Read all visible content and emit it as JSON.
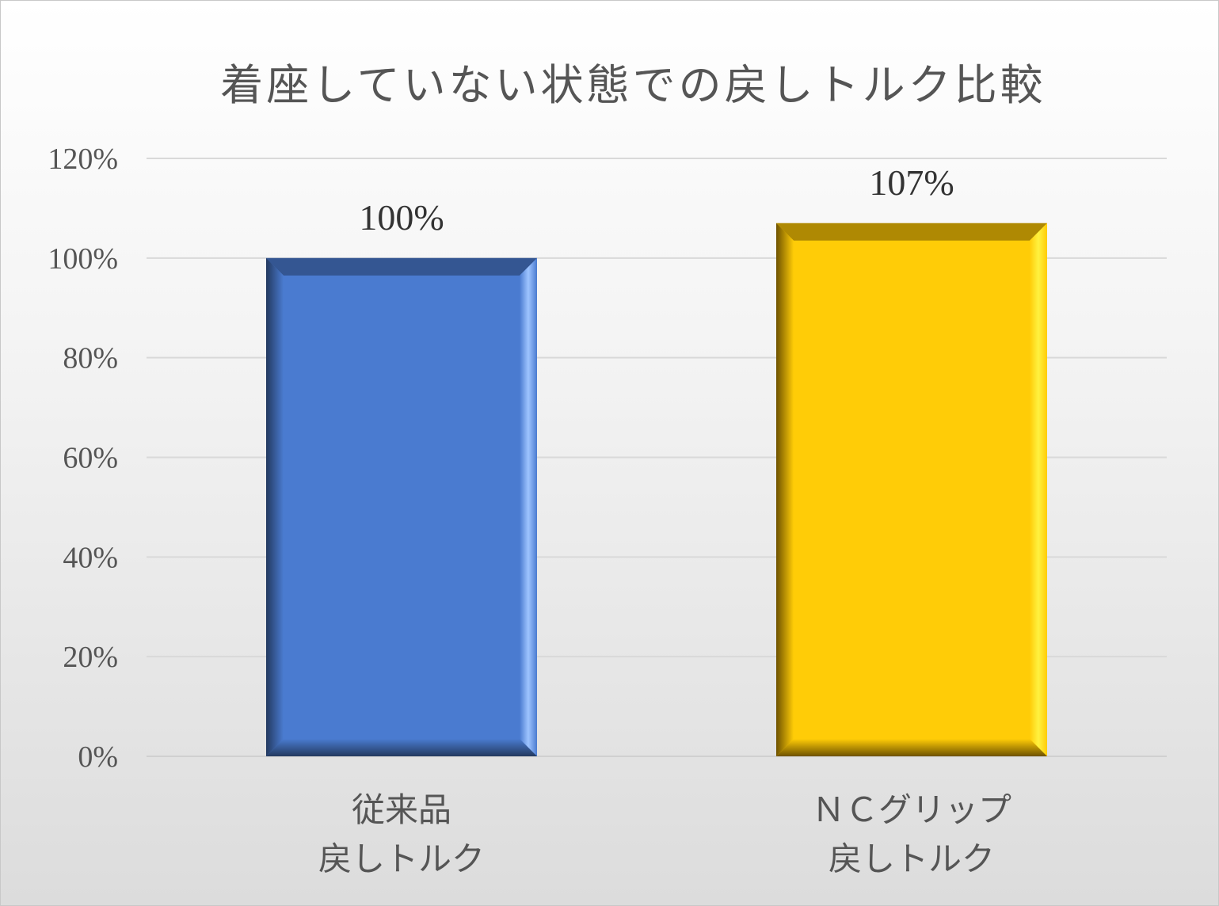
{
  "chart_data": {
    "type": "bar",
    "title": "着座していない状態での戻しトルク比較",
    "categories": [
      "従来品\n戻しトルク",
      "ＮＣグリップ\n戻しトルク"
    ],
    "values": [
      100,
      107
    ],
    "data_labels": [
      "100%",
      "107%"
    ],
    "y_ticks": [
      "0%",
      "20%",
      "40%",
      "60%",
      "80%",
      "100%",
      "120%"
    ],
    "ylim": [
      0,
      120
    ],
    "grid": true,
    "legend": "none",
    "bar_colors": [
      "#4a7bd0",
      "#ffcc07"
    ],
    "bar_edge_light": [
      "#9ec4ff",
      "#fff240"
    ],
    "bar_edge_dark": [
      "#23395f",
      "#6e5200"
    ]
  }
}
